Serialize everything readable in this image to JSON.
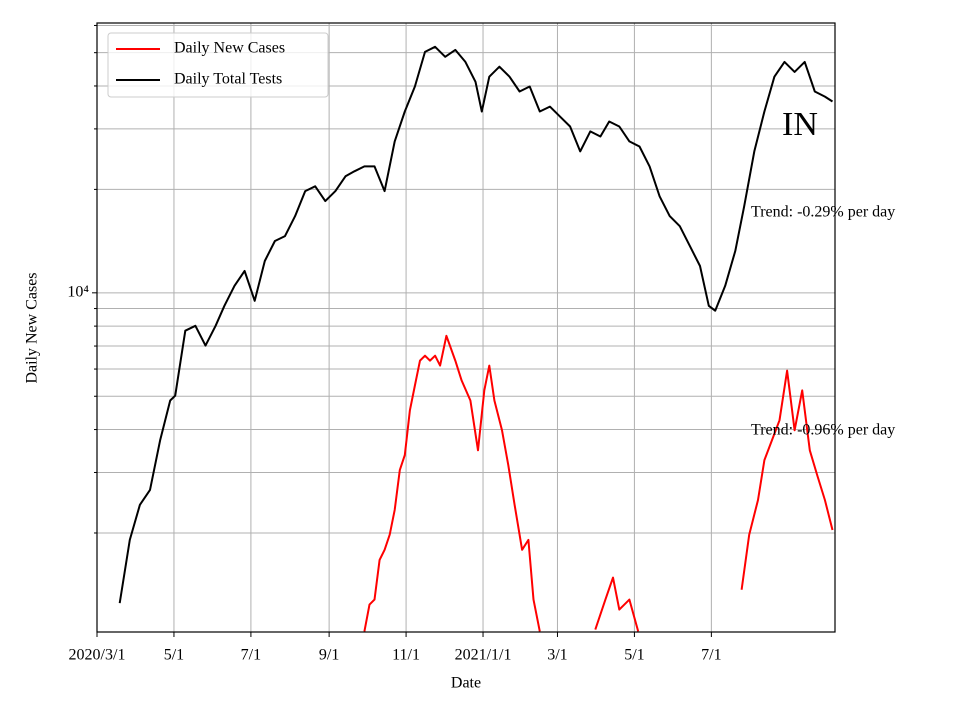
{
  "chart_data": {
    "type": "line",
    "annotations": [
      "IN",
      "Trend: -0.29% per day",
      "Trend: -0.96% per day"
    ],
    "xlabel": "Date",
    "ylabel": "Daily New Cases",
    "log_y": true,
    "grid": true,
    "legend": "upper left",
    "xlim": [
      "2020-03-01",
      "2021-10-07"
    ],
    "xticks": [
      {
        "value": "2020-03-01",
        "label": "2020/3/1"
      },
      {
        "value": "2020-05-01",
        "label": "5/1"
      },
      {
        "value": "2020-07-01",
        "label": "7/1"
      },
      {
        "value": "2020-09-01",
        "label": "9/1"
      },
      {
        "value": "2020-11-01",
        "label": "11/1"
      },
      {
        "value": "2021-01-01",
        "label": "2021/1/1"
      },
      {
        "value": "2021-03-01",
        "label": "3/1"
      },
      {
        "value": "2021-05-01",
        "label": "5/1"
      },
      {
        "value": "2021-07-01",
        "label": "7/1"
      }
    ],
    "ylim": [
      1030,
      61000
    ],
    "yticks": [
      {
        "value": 10000,
        "label": "10⁴"
      }
    ],
    "yminorticks": [
      2000,
      3000,
      4000,
      5000,
      6000,
      7000,
      8000,
      9000,
      20000,
      30000,
      40000,
      50000,
      60000
    ],
    "series": [
      {
        "name": "Daily New Cases",
        "color": "#ff0000",
        "x": [
          "2020-09-29",
          "2020-10-03",
          "2020-10-07",
          "2020-10-11",
          "2020-10-15",
          "2020-10-19",
          "2020-10-23",
          "2020-10-27",
          "2020-10-31",
          "2020-11-04",
          "2020-11-08",
          "2020-11-12",
          "2020-11-16",
          "2020-11-20",
          "2020-11-24",
          "2020-11-28",
          "2020-12-03",
          "2020-12-10",
          "2020-12-15",
          "2020-12-22",
          "2020-12-28",
          "2021-01-02",
          "2021-01-06",
          "2021-01-10",
          "2021-01-16",
          "2021-01-21",
          "2021-01-26",
          "2021-02-01",
          "2021-02-06",
          "2021-02-10",
          "2021-02-15",
          null,
          "2021-03-31",
          "2021-04-08",
          "2021-04-14",
          "2021-04-19",
          "2021-04-27",
          "2021-05-04",
          null,
          "2021-07-25",
          "2021-07-31",
          "2021-08-07",
          "2021-08-12",
          "2021-08-18",
          "2021-08-24",
          "2021-08-30",
          "2021-09-05",
          "2021-09-11",
          "2021-09-17",
          "2021-09-23",
          "2021-09-29",
          "2021-10-05"
        ],
        "values": [
          1034,
          1238,
          1280,
          1670,
          1787,
          1977,
          2335,
          3048,
          3370,
          4550,
          5375,
          6350,
          6560,
          6350,
          6560,
          6140,
          7500,
          6350,
          5560,
          4860,
          3480,
          5200,
          6140,
          4860,
          3980,
          3150,
          2415,
          1787,
          1910,
          1280,
          1034,
          null,
          1047,
          1280,
          1483,
          1197,
          1280,
          1034,
          null,
          1368,
          1977,
          2495,
          3260,
          3720,
          4255,
          5940,
          3980,
          5200,
          3480,
          2940,
          2495,
          2040
        ]
      },
      {
        "name": "Daily Total Tests",
        "color": "#000000",
        "x": [
          "2020-03-19",
          "2020-03-27",
          "2020-04-04",
          "2020-04-12",
          "2020-04-20",
          "2020-04-28",
          "2020-05-02",
          "2020-05-10",
          "2020-05-18",
          "2020-05-26",
          "2020-06-03",
          "2020-06-10",
          "2020-06-18",
          "2020-06-26",
          "2020-07-04",
          "2020-07-12",
          "2020-07-20",
          "2020-07-28",
          "2020-08-05",
          "2020-08-13",
          "2020-08-21",
          "2020-08-29",
          "2020-09-06",
          "2020-09-14",
          "2020-09-21",
          "2020-09-29",
          "2020-10-07",
          "2020-10-15",
          "2020-10-23",
          "2020-10-31",
          "2020-11-08",
          "2020-11-16",
          "2020-11-24",
          "2020-12-02",
          "2020-12-10",
          "2020-12-18",
          "2020-12-26",
          "2020-12-31",
          "2021-01-06",
          "2021-01-14",
          "2021-01-22",
          "2021-01-30",
          "2021-02-07",
          "2021-02-15",
          "2021-02-23",
          "2021-03-03",
          "2021-03-11",
          "2021-03-19",
          "2021-03-27",
          "2021-04-04",
          "2021-04-11",
          "2021-04-19",
          "2021-04-27",
          "2021-05-05",
          "2021-05-13",
          "2021-05-21",
          "2021-05-29",
          "2021-06-06",
          "2021-06-14",
          "2021-06-22",
          "2021-06-29",
          "2021-07-04",
          "2021-07-12",
          "2021-07-20",
          "2021-07-27",
          "2021-08-04",
          "2021-08-12",
          "2021-08-20",
          "2021-08-28",
          "2021-09-05",
          "2021-09-13",
          "2021-09-21",
          "2021-09-29",
          "2021-10-05"
        ],
        "values": [
          1250,
          1910,
          2415,
          2670,
          3720,
          4860,
          5020,
          7760,
          8020,
          7020,
          8020,
          9170,
          10480,
          11580,
          9480,
          12380,
          14150,
          14630,
          16720,
          19770,
          20420,
          18490,
          19770,
          21840,
          22580,
          23340,
          23340,
          19770,
          27590,
          33710,
          39850,
          50250,
          52000,
          48640,
          50950,
          47010,
          41130,
          33710,
          42560,
          45500,
          42560,
          38550,
          39850,
          33710,
          34830,
          32580,
          30480,
          25800,
          29510,
          28510,
          31520,
          30480,
          27590,
          26670,
          23340,
          19100,
          16720,
          15630,
          13680,
          11970,
          9170,
          8870,
          10480,
          13240,
          17870,
          25800,
          33710,
          42560,
          47010,
          43960,
          47010,
          38550,
          37240,
          36040
        ]
      }
    ]
  }
}
